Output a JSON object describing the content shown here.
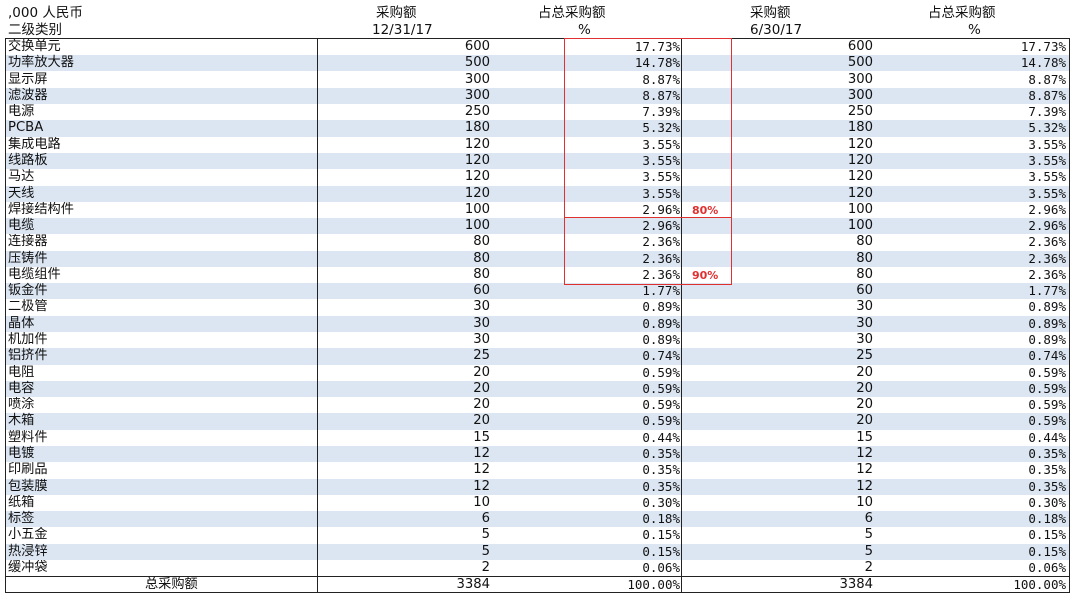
{
  "header": {
    "unit": ",000 人民币",
    "category": "二级类别",
    "col1_a": "采购额",
    "col1_b": "12/31/17",
    "col2_a": "占总采购额",
    "col2_b": "%",
    "col3_a": "采购额",
    "col3_b": "6/30/17",
    "col4_a": "占总采购额",
    "col4_b": "%"
  },
  "rows": [
    {
      "name": "交换单元",
      "v1": "600",
      "p1": "17.73%",
      "v2": "600",
      "p2": "17.73%"
    },
    {
      "name": "功率放大器",
      "v1": "500",
      "p1": "14.78%",
      "v2": "500",
      "p2": "14.78%"
    },
    {
      "name": "显示屏",
      "v1": "300",
      "p1": "8.87%",
      "v2": "300",
      "p2": "8.87%"
    },
    {
      "name": "滤波器",
      "v1": "300",
      "p1": "8.87%",
      "v2": "300",
      "p2": "8.87%"
    },
    {
      "name": "电源",
      "v1": "250",
      "p1": "7.39%",
      "v2": "250",
      "p2": "7.39%"
    },
    {
      "name": "PCBA",
      "v1": "180",
      "p1": "5.32%",
      "v2": "180",
      "p2": "5.32%"
    },
    {
      "name": "集成电路",
      "v1": "120",
      "p1": "3.55%",
      "v2": "120",
      "p2": "3.55%"
    },
    {
      "name": "线路板",
      "v1": "120",
      "p1": "3.55%",
      "v2": "120",
      "p2": "3.55%"
    },
    {
      "name": "马达",
      "v1": "120",
      "p1": "3.55%",
      "v2": "120",
      "p2": "3.55%"
    },
    {
      "name": "天线",
      "v1": "120",
      "p1": "3.55%",
      "v2": "120",
      "p2": "3.55%"
    },
    {
      "name": "焊接结构件",
      "v1": "100",
      "p1": "2.96%",
      "v2": "100",
      "p2": "2.96%"
    },
    {
      "name": "电缆",
      "v1": "100",
      "p1": "2.96%",
      "v2": "100",
      "p2": "2.96%"
    },
    {
      "name": "连接器",
      "v1": "80",
      "p1": "2.36%",
      "v2": "80",
      "p2": "2.36%"
    },
    {
      "name": "压铸件",
      "v1": "80",
      "p1": "2.36%",
      "v2": "80",
      "p2": "2.36%"
    },
    {
      "name": "电缆组件",
      "v1": "80",
      "p1": "2.36%",
      "v2": "80",
      "p2": "2.36%"
    },
    {
      "name": "钣金件",
      "v1": "60",
      "p1": "1.77%",
      "v2": "60",
      "p2": "1.77%"
    },
    {
      "name": "二极管",
      "v1": "30",
      "p1": "0.89%",
      "v2": "30",
      "p2": "0.89%"
    },
    {
      "name": "晶体",
      "v1": "30",
      "p1": "0.89%",
      "v2": "30",
      "p2": "0.89%"
    },
    {
      "name": "机加件",
      "v1": "30",
      "p1": "0.89%",
      "v2": "30",
      "p2": "0.89%"
    },
    {
      "name": "铝挤件",
      "v1": "25",
      "p1": "0.74%",
      "v2": "25",
      "p2": "0.74%"
    },
    {
      "name": "电阻",
      "v1": "20",
      "p1": "0.59%",
      "v2": "20",
      "p2": "0.59%"
    },
    {
      "name": "电容",
      "v1": "20",
      "p1": "0.59%",
      "v2": "20",
      "p2": "0.59%"
    },
    {
      "name": "喷涂",
      "v1": "20",
      "p1": "0.59%",
      "v2": "20",
      "p2": "0.59%"
    },
    {
      "name": "木箱",
      "v1": "20",
      "p1": "0.59%",
      "v2": "20",
      "p2": "0.59%"
    },
    {
      "name": "塑料件",
      "v1": "15",
      "p1": "0.44%",
      "v2": "15",
      "p2": "0.44%"
    },
    {
      "name": "电镀",
      "v1": "12",
      "p1": "0.35%",
      "v2": "12",
      "p2": "0.35%"
    },
    {
      "name": "印刷品",
      "v1": "12",
      "p1": "0.35%",
      "v2": "12",
      "p2": "0.35%"
    },
    {
      "name": "包装膜",
      "v1": "12",
      "p1": "0.35%",
      "v2": "12",
      "p2": "0.35%"
    },
    {
      "name": "纸箱",
      "v1": "10",
      "p1": "0.30%",
      "v2": "10",
      "p2": "0.30%"
    },
    {
      "name": "标签",
      "v1": "6",
      "p1": "0.18%",
      "v2": "6",
      "p2": "0.18%"
    },
    {
      "name": "小五金",
      "v1": "5",
      "p1": "0.15%",
      "v2": "5",
      "p2": "0.15%"
    },
    {
      "name": "热浸锌",
      "v1": "5",
      "p1": "0.15%",
      "v2": "5",
      "p2": "0.15%"
    },
    {
      "name": "缓冲袋",
      "v1": "2",
      "p1": "0.06%",
      "v2": "2",
      "p2": "0.06%"
    }
  ],
  "total": {
    "name": "总采购额",
    "v1": "3384",
    "p1": "100.00%",
    "v2": "3384",
    "p2": "100.00%"
  },
  "annotations": {
    "label80": "80%",
    "label90": "90%",
    "box_color": "#e03030"
  },
  "colors": {
    "alt_row": "#dce6f2"
  }
}
